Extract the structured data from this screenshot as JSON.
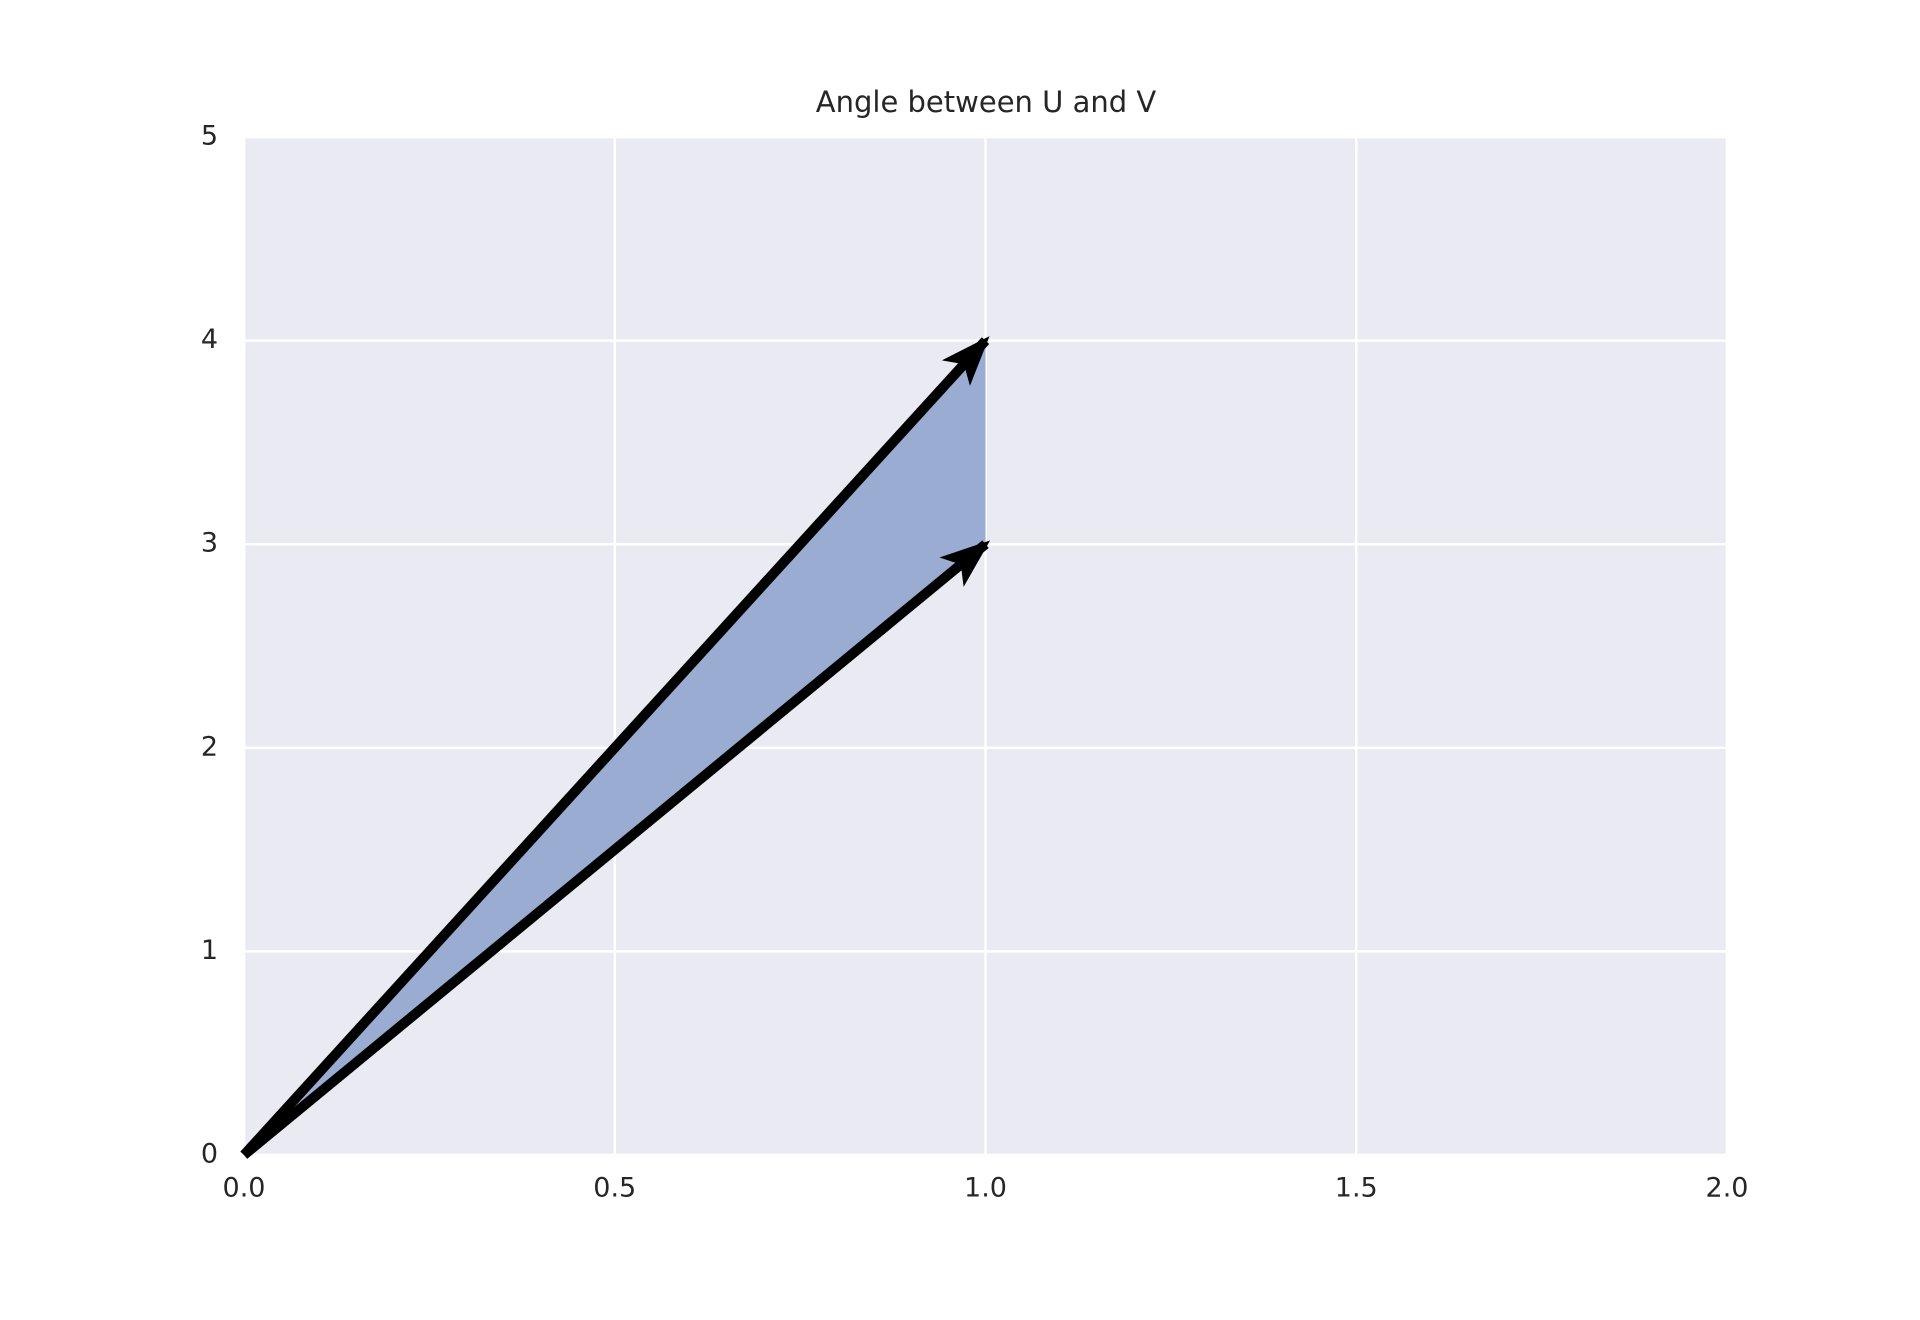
{
  "chart_data": {
    "type": "vector",
    "title": "Angle between U and V",
    "series": [
      {
        "x": [
          0,
          1
        ],
        "y": [
          0,
          4
        ],
        "color": "#000000"
      },
      {
        "x": [
          0,
          1
        ],
        "y": [
          0,
          3
        ],
        "color": "#000000"
      }
    ],
    "fill": {
      "x": [
        0,
        1,
        1
      ],
      "y": [
        0,
        4,
        3
      ],
      "color": "#9aacd2"
    },
    "xlim": [
      0,
      2
    ],
    "ylim": [
      0,
      5
    ],
    "xticks": [
      {
        "value": 0,
        "label": "0.0"
      },
      0.5,
      {
        "value": 1,
        "label": "1.0"
      },
      1.5,
      {
        "value": 2,
        "label": "2.0"
      }
    ],
    "yticks": [
      0,
      1,
      2,
      3,
      4,
      5
    ],
    "grid": true
  }
}
